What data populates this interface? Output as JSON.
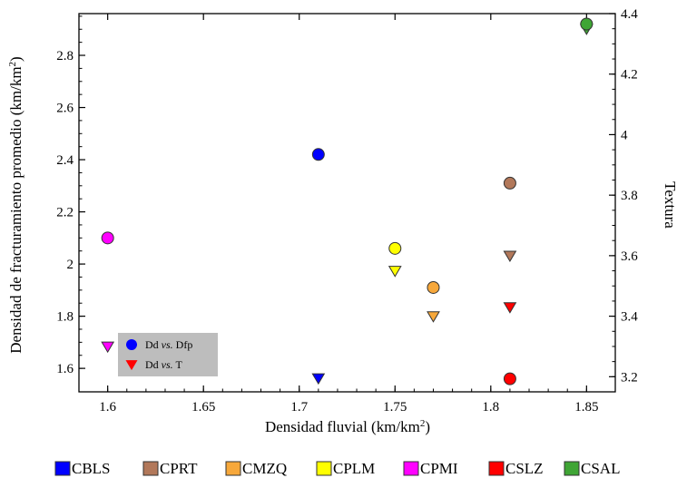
{
  "chart_data": {
    "type": "scatter",
    "xlabel_base": "Densidad fluvial (km/km",
    "xlabel_sup": "2",
    "xlabel_end": ")",
    "ylabel_base": "Densidad de fracturamiento promedio (km/km",
    "ylabel_sup": "2",
    "ylabel_end": ")",
    "y2label": "Textura",
    "xlim": [
      1.585,
      1.865
    ],
    "ylim": [
      1.51,
      2.96
    ],
    "y2lim": [
      3.15,
      4.4
    ],
    "x_ticks": [
      1.6,
      1.65,
      1.7,
      1.75,
      1.8,
      1.85
    ],
    "x_tick_labels": [
      "1.6",
      "1.65",
      "1.7",
      "1.75",
      "1.8",
      "1.85"
    ],
    "y_ticks": [
      1.6,
      1.8,
      2.0,
      2.2,
      2.4,
      2.6,
      2.8
    ],
    "y_tick_labels": [
      "1.6",
      "1.8",
      "2",
      "2.2",
      "2.4",
      "2.6",
      "2.8"
    ],
    "y2_ticks": [
      3.2,
      3.4,
      3.6,
      3.8,
      4.0,
      4.2,
      4.4
    ],
    "y2_tick_labels": [
      "3.2",
      "3.4",
      "3.6",
      "3.8",
      "4",
      "4.2",
      "4.4"
    ],
    "grid": false,
    "inner_legend": {
      "placement": "bottom-left",
      "items": [
        {
          "pre": "Dd ",
          "ital": "vs.",
          "post": " Dfp",
          "marker": "circle",
          "color": "#0000ff"
        },
        {
          "pre": "Dd ",
          "ital": "vs.",
          "post": " T",
          "marker": "triangle",
          "color": "#ff0000"
        }
      ]
    },
    "series": [
      {
        "name": "CBLS",
        "color": "#0000ff",
        "x": 1.71,
        "dfp": 2.42,
        "textura": 3.195
      },
      {
        "name": "CPRT",
        "color": "#b2785a",
        "x": 1.81,
        "dfp": 2.31,
        "textura": 3.6
      },
      {
        "name": "CMZQ",
        "color": "#f7a83b",
        "x": 1.77,
        "dfp": 1.91,
        "textura": 3.4
      },
      {
        "name": "CPLM",
        "color": "#ffff00",
        "x": 1.75,
        "dfp": 2.06,
        "textura": 3.55
      },
      {
        "name": "CPMI",
        "color": "#ff00ff",
        "x": 1.6,
        "dfp": 2.1,
        "textura": 3.3
      },
      {
        "name": "CSLZ",
        "color": "#ff0000",
        "x": 1.81,
        "dfp": 1.56,
        "textura": 3.43
      },
      {
        "name": "CSAL",
        "color": "#3fa535",
        "x": 1.85,
        "dfp": 2.92,
        "textura": 4.35
      }
    ]
  }
}
